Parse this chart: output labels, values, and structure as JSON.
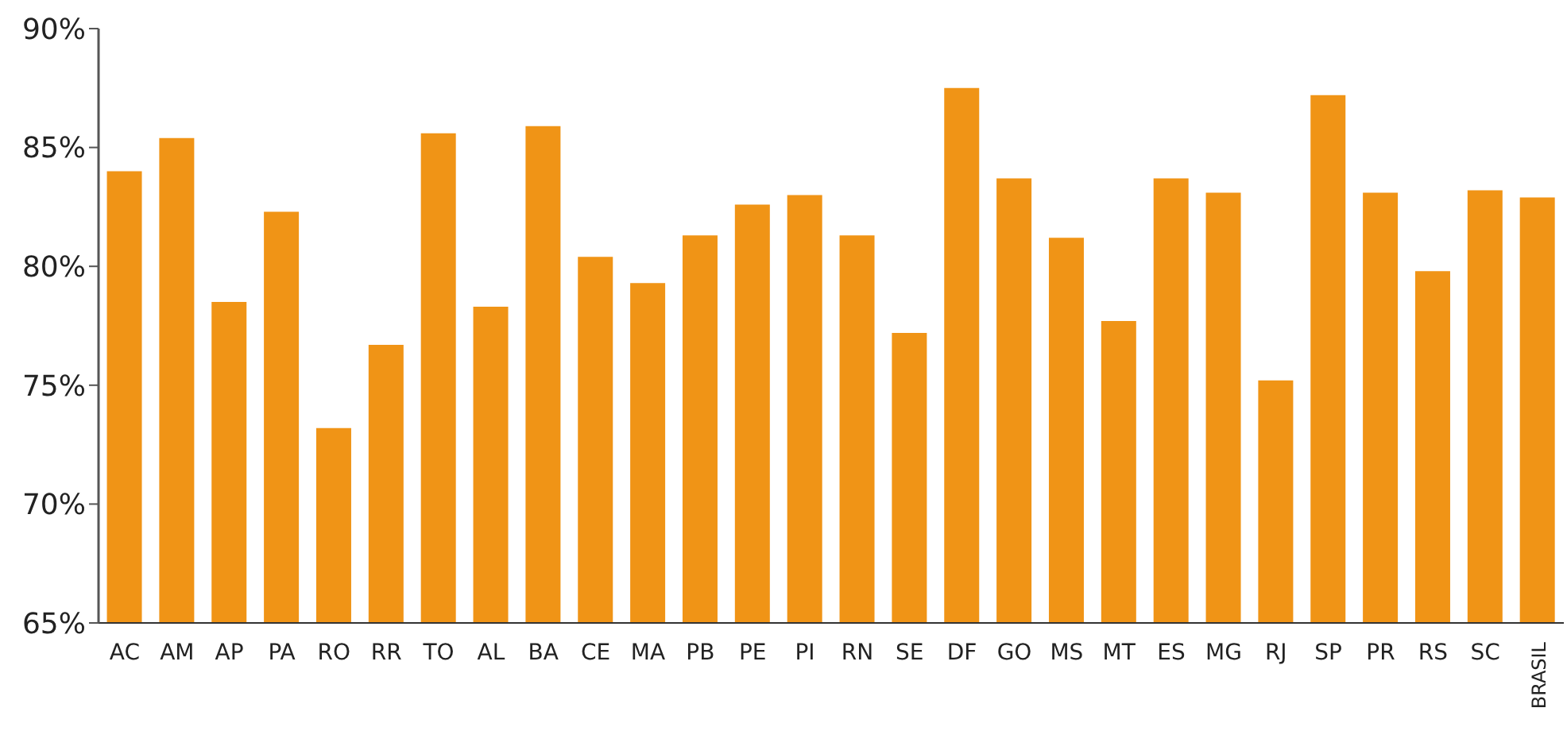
{
  "chart_data": {
    "type": "bar",
    "categories": [
      "AC",
      "AM",
      "AP",
      "PA",
      "RO",
      "RR",
      "TO",
      "AL",
      "BA",
      "CE",
      "MA",
      "PB",
      "PE",
      "PI",
      "RN",
      "SE",
      "DF",
      "GO",
      "MS",
      "MT",
      "ES",
      "MG",
      "RJ",
      "SP",
      "PR",
      "RS",
      "SC",
      "BRASIL"
    ],
    "values": [
      84.0,
      85.4,
      78.5,
      82.3,
      73.2,
      76.7,
      85.6,
      78.3,
      85.9,
      80.4,
      79.3,
      81.3,
      82.6,
      83.0,
      81.3,
      77.2,
      87.5,
      83.7,
      81.2,
      77.7,
      83.7,
      83.1,
      75.2,
      87.2,
      83.1,
      79.8,
      83.2,
      82.9
    ],
    "color": "#f09416",
    "ylim": [
      65,
      90
    ],
    "yticks": [
      {
        "value": 65,
        "label": "65%"
      },
      {
        "value": 70,
        "label": "70%"
      },
      {
        "value": 75,
        "label": "75%"
      },
      {
        "value": 80,
        "label": "80%"
      },
      {
        "value": 85,
        "label": "85%"
      },
      {
        "value": 90,
        "label": "90%"
      }
    ],
    "grid": false,
    "legend": false
  }
}
